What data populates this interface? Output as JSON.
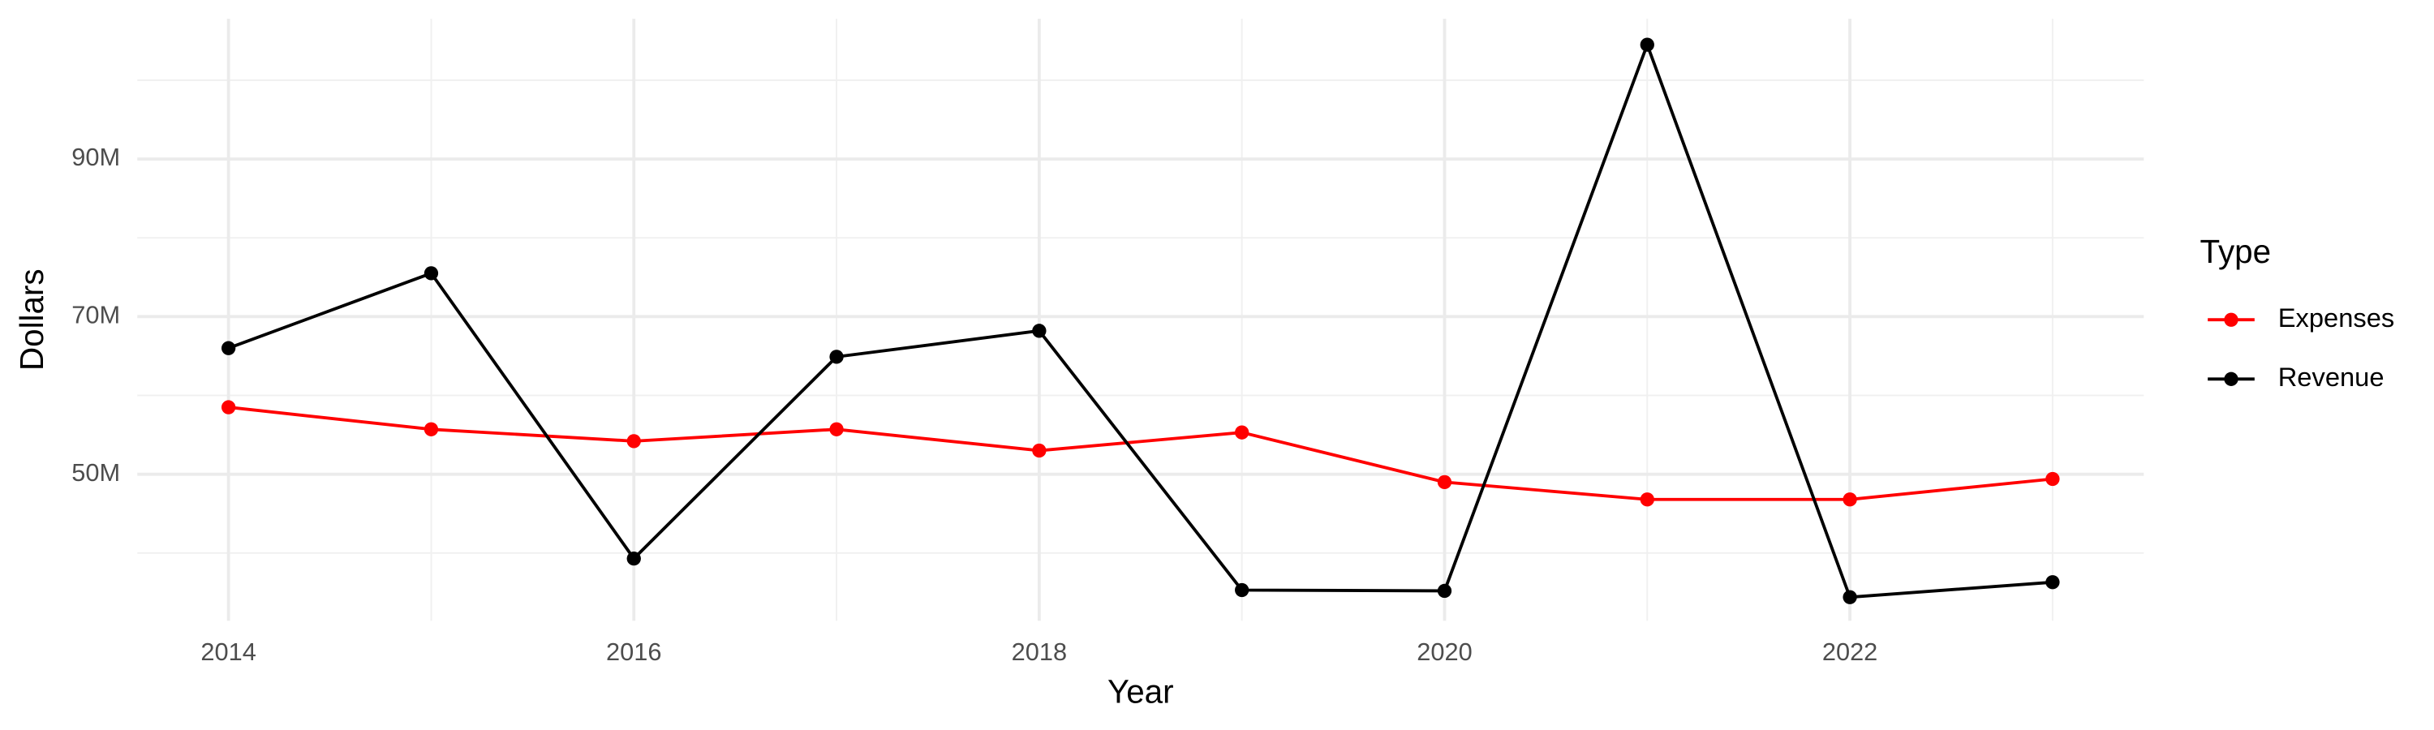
{
  "chart_data": {
    "type": "line",
    "x_label": "Year",
    "y_label": "Dollars",
    "legend_title": "Type",
    "x": [
      2014,
      2015,
      2016,
      2017,
      2018,
      2019,
      2020,
      2021,
      2022,
      2023
    ],
    "series": [
      {
        "name": "Expenses",
        "color": "#ff0000",
        "values": [
          58500000,
          55700000,
          54200000,
          55700000,
          53000000,
          55300000,
          49000000,
          46800000,
          46800000,
          49400000
        ]
      },
      {
        "name": "Revenue",
        "color": "#000000",
        "values": [
          66000000,
          75500000,
          39300000,
          64900000,
          68200000,
          35300000,
          35200000,
          104500000,
          34400000,
          36300000
        ]
      }
    ],
    "xlim": [
      2013.55,
      2023.45
    ],
    "xticks": [
      2014,
      2016,
      2018,
      2020,
      2022
    ],
    "ylim": [
      31400000,
      107800000
    ],
    "yticks": [
      {
        "value": 50000000,
        "label": "50M"
      },
      {
        "value": 70000000,
        "label": "70M"
      },
      {
        "value": 90000000,
        "label": "90M"
      }
    ],
    "grid": true,
    "legend": "right"
  }
}
